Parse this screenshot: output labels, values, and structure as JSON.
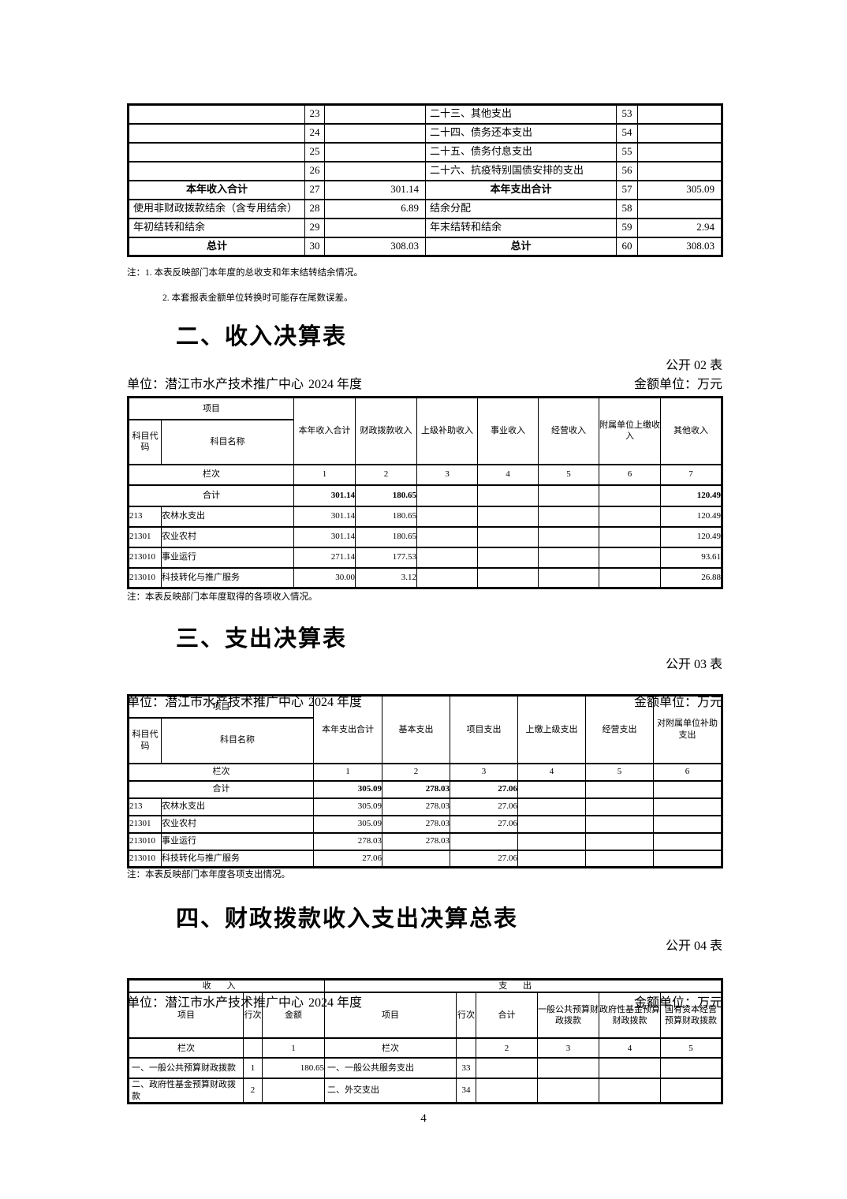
{
  "page": {
    "number": "4"
  },
  "table1": {
    "rows": [
      {
        "c": [
          "",
          "23",
          "",
          "二十三、其他支出",
          "53",
          ""
        ]
      },
      {
        "c": [
          "",
          "24",
          "",
          "二十四、债务还本支出",
          "54",
          ""
        ]
      },
      {
        "c": [
          "",
          "25",
          "",
          "二十五、债务付息支出",
          "55",
          ""
        ]
      },
      {
        "c": [
          "",
          "26",
          "",
          "二十六、抗疫特别国债安排的支出",
          "56",
          ""
        ]
      },
      {
        "c": [
          "本年收入合计",
          "27",
          "301.14",
          "本年支出合计",
          "57",
          "305.09"
        ],
        "em": true
      },
      {
        "c": [
          "使用非财政拨款结余（含专用结余）",
          "28",
          "6.89",
          "结余分配",
          "58",
          ""
        ]
      },
      {
        "c": [
          "年初结转和结余",
          "29",
          "",
          "年末结转和结余",
          "59",
          "2.94"
        ]
      },
      {
        "c": [
          "总计",
          "30",
          "308.03",
          "总计",
          "60",
          "308.03"
        ],
        "em": true
      }
    ],
    "note1": "注：1. 本表反映部门本年度的总收支和年末结转结余情况。",
    "note2": "2. 本套报表金额单位转换时可能存在尾数误差。"
  },
  "income": {
    "title": "二、收入决算表",
    "table_label": "公开 02 表",
    "unit_label": "单位：潜江市水产技术推广中心",
    "year_label": "2024 年度",
    "money_unit_label": "金额单位：万元",
    "head": {
      "item": "项目",
      "code": "科目代码",
      "name": "科目名称",
      "cols": [
        "本年收入合计",
        "财政拨款收入",
        "上级补助收入",
        "事业收入",
        "经营收入",
        "附属单位上缴收入",
        "其他收入"
      ],
      "lanci": "栏次",
      "lanci_nums": [
        "1",
        "2",
        "3",
        "4",
        "5",
        "6",
        "7"
      ],
      "total_label": "合计",
      "total_values": [
        "301.14",
        "180.65",
        "",
        "",
        "",
        "",
        "120.49"
      ]
    },
    "rows": [
      {
        "c": [
          "213",
          "农林水支出",
          "301.14",
          "180.65",
          "",
          "",
          "",
          "",
          "120.49"
        ]
      },
      {
        "c": [
          "21301",
          "农业农村",
          "301.14",
          "180.65",
          "",
          "",
          "",
          "",
          "120.49"
        ]
      },
      {
        "c": [
          "213010",
          "事业运行",
          "271.14",
          "177.53",
          "",
          "",
          "",
          "",
          "93.61"
        ]
      },
      {
        "c": [
          "213010",
          "科技转化与推广服务",
          "30.00",
          "3.12",
          "",
          "",
          "",
          "",
          "26.88"
        ]
      }
    ],
    "note": "注：本表反映部门本年度取得的各项收入情况。"
  },
  "expense": {
    "title": "三、支出决算表",
    "table_label": "公开 03 表",
    "unit_label": "单位：潜江市水产技术推广中心",
    "year_label": "2024 年度",
    "money_unit_label": "金额单位：万元",
    "head": {
      "item": "项目",
      "code": "科目代码",
      "name": "科目名称",
      "cols": [
        "本年支出合计",
        "基本支出",
        "项目支出",
        "上缴上级支出",
        "经营支出",
        "对附属单位补助支出"
      ],
      "lanci": "栏次",
      "lanci_nums": [
        "1",
        "2",
        "3",
        "4",
        "5",
        "6"
      ],
      "total_label": "合计",
      "total_values": [
        "305.09",
        "278.03",
        "27.06",
        "",
        "",
        ""
      ]
    },
    "rows": [
      {
        "c": [
          "213",
          "农林水支出",
          "305.09",
          "278.03",
          "27.06",
          "",
          "",
          ""
        ]
      },
      {
        "c": [
          "21301",
          "农业农村",
          "305.09",
          "278.03",
          "27.06",
          "",
          "",
          ""
        ]
      },
      {
        "c": [
          "213010",
          "事业运行",
          "278.03",
          "278.03",
          "",
          "",
          "",
          ""
        ]
      },
      {
        "c": [
          "213010",
          "科技转化与推广服务",
          "27.06",
          "",
          "27.06",
          "",
          "",
          ""
        ]
      }
    ],
    "note": "注：本表反映部门本年度各项支出情况。"
  },
  "fiscal": {
    "title": "四、财政拨款收入支出决算总表",
    "table_label": "公开 04 表",
    "unit_label": "单位：潜江市水产技术推广中心",
    "year_label": "2024 年度",
    "money_unit_label": "金额单位：万元",
    "head": {
      "income_span": "收入",
      "expense_span": "支出",
      "item": "项目",
      "line": "行次",
      "amount": "金额",
      "item2": "项目",
      "line2": "行次",
      "total": "合计",
      "cols": [
        "一般公共预算财政拨款",
        "政府性基金预算财政拨款",
        "国有资本经营预算财政拨款"
      ],
      "lanci": "栏次",
      "lanci2": "栏次",
      "lanci_nums": [
        "1",
        "2",
        "3",
        "4",
        "5"
      ]
    },
    "rows": [
      {
        "c": [
          "一、一般公共预算财政拨款",
          "1",
          "180.65",
          "一、一般公共服务支出",
          "33",
          "",
          "",
          "",
          ""
        ]
      },
      {
        "c": [
          "二、政府性基金预算财政拨款",
          "2",
          "",
          "二、外交支出",
          "34",
          "",
          "",
          "",
          ""
        ]
      }
    ]
  }
}
